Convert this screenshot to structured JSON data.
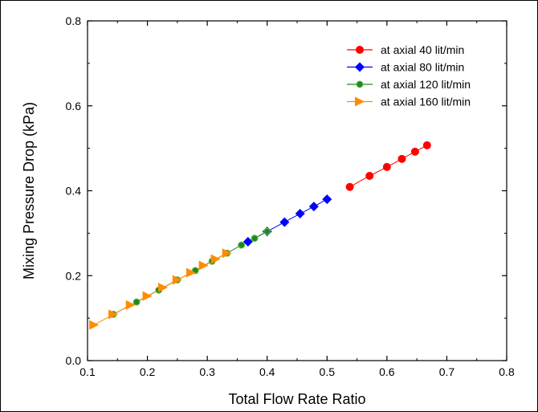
{
  "chart_data": {
    "type": "scatter",
    "xlabel": "Total Flow Rate Ratio",
    "ylabel": "Mixing Pressure Drop (kPa)",
    "xlim": [
      0.1,
      0.8
    ],
    "ylim": [
      0.0,
      0.8
    ],
    "xticks": [
      "0.1",
      "0.2",
      "0.3",
      "0.4",
      "0.5",
      "0.6",
      "0.7",
      "0.8"
    ],
    "yticks": [
      "0.0",
      "0.2",
      "0.4",
      "0.6",
      "0.8"
    ],
    "xtick_values": [
      0.1,
      0.2,
      0.3,
      0.4,
      0.5,
      0.6,
      0.7,
      0.8
    ],
    "ytick_values": [
      0.0,
      0.2,
      0.4,
      0.6,
      0.8
    ],
    "grid": false,
    "legend_position": "top-right",
    "series": [
      {
        "name": "at axial 40 lit/min",
        "color": "#ff0000",
        "marker": "circle",
        "x": [
          0.538,
          0.571,
          0.6,
          0.625,
          0.647,
          0.667
        ],
        "y": [
          0.409,
          0.435,
          0.456,
          0.475,
          0.492,
          0.507
        ]
      },
      {
        "name": "at axial 80 lit/min",
        "color": "#0000ff",
        "marker": "diamond",
        "x": [
          0.368,
          0.4,
          0.429,
          0.455,
          0.478,
          0.5
        ],
        "y": [
          0.28,
          0.304,
          0.326,
          0.346,
          0.363,
          0.38
        ]
      },
      {
        "name": "at axial 120 lit/min",
        "color": "#1e8a1e",
        "marker": "circle-small",
        "x": [
          0.143,
          0.182,
          0.219,
          0.25,
          0.28,
          0.308,
          0.333,
          0.357,
          0.379,
          0.4
        ],
        "y": [
          0.109,
          0.138,
          0.166,
          0.19,
          0.212,
          0.234,
          0.253,
          0.272,
          0.288,
          0.304
        ]
      },
      {
        "name": "at axial 160 lit/min",
        "color": "#ff8c00",
        "marker": "triangle-right",
        "x": [
          0.111,
          0.143,
          0.172,
          0.2,
          0.226,
          0.25,
          0.273,
          0.294,
          0.314,
          0.333
        ],
        "y": [
          0.084,
          0.109,
          0.131,
          0.152,
          0.172,
          0.19,
          0.207,
          0.224,
          0.239,
          0.253
        ]
      }
    ]
  }
}
